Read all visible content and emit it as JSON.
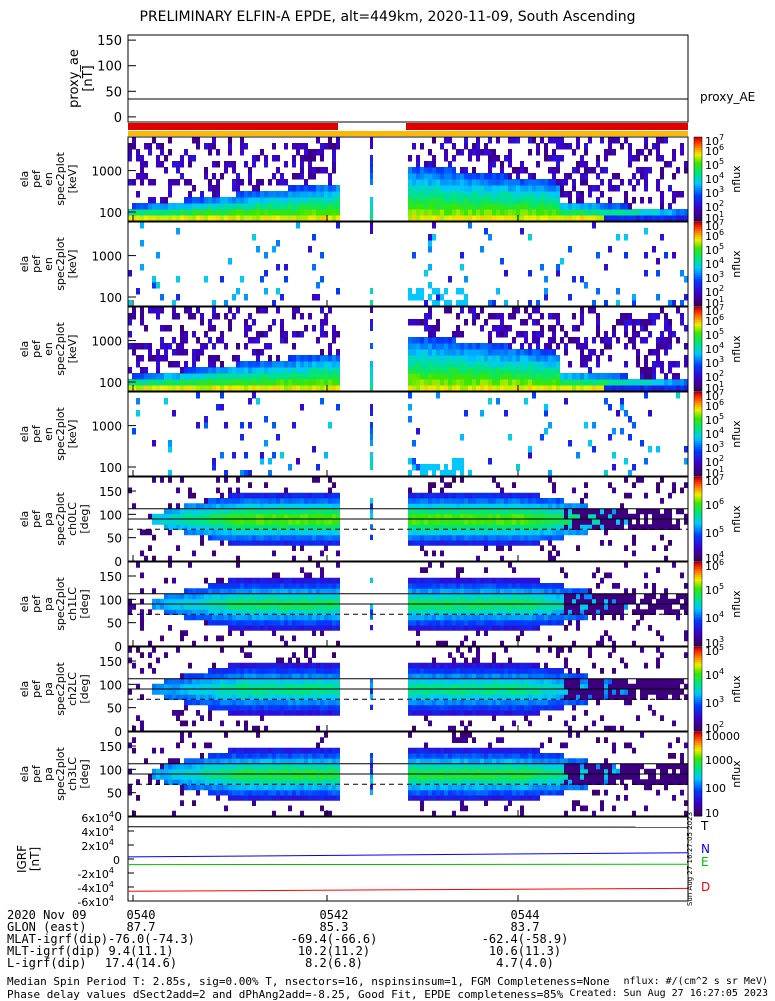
{
  "title": "PRELIMINARY ELFIN-A EPDE, alt=449km, 2020-11-09, South Ascending",
  "chart_data": [
    {
      "type": "line",
      "name": "proxy_ae",
      "ylabel": "proxy_ae\n[nT]",
      "legend": "proxy_AE",
      "ylim": [
        -10,
        160
      ],
      "yticks": [
        0,
        50,
        100,
        150
      ],
      "series": [
        {
          "name": "proxy_AE",
          "values": [
            35,
            35
          ]
        }
      ]
    },
    {
      "type": "heatmap",
      "name": "energy spectrogram",
      "ylabel": "ela\npef\nen\nspec2plot\n[keV]",
      "yscale": "log",
      "yticks": [
        "100",
        "1000"
      ],
      "colorbar": {
        "label": "nflux",
        "ticks": [
          "10^1",
          "10^2",
          "10^3",
          "10^4",
          "10^5",
          "10^6",
          "10^7"
        ]
      }
    },
    {
      "type": "heatmap",
      "name": "energy spectrogram 2",
      "ylabel": "ela\npef\nen\nspec2plot\n[keV]",
      "yscale": "log",
      "yticks": [
        "100",
        "1000"
      ],
      "colorbar": {
        "label": "nflux",
        "ticks": [
          "10^1",
          "10^2",
          "10^3",
          "10^4",
          "10^5",
          "10^6",
          "10^7"
        ]
      }
    },
    {
      "type": "heatmap",
      "name": "energy spectrogram 3",
      "ylabel": "ela\npef\nen\nspec2plot\n[keV]",
      "yscale": "log",
      "yticks": [
        "100",
        "1000"
      ],
      "colorbar": {
        "label": "nflux",
        "ticks": [
          "10^1",
          "10^2",
          "10^3",
          "10^4",
          "10^5",
          "10^6",
          "10^7"
        ]
      }
    },
    {
      "type": "heatmap",
      "name": "energy spectrogram 4",
      "ylabel": "ela\npef\nen\nspec2plot\n[keV]",
      "yscale": "log",
      "yticks": [
        "100",
        "1000"
      ],
      "colorbar": {
        "label": "nflux",
        "ticks": [
          "10^1",
          "10^2",
          "10^3",
          "10^4",
          "10^5",
          "10^6",
          "10^7"
        ]
      }
    },
    {
      "type": "heatmap",
      "name": "pitch angle ch0",
      "ylabel": "ela\npef\npa\nspec2plot\nch0LC\n[deg]",
      "ylim": [
        0,
        180
      ],
      "yticks": [
        0,
        50,
        100,
        150
      ],
      "colorbar": {
        "label": "nflux",
        "ticks": [
          "10^4",
          "10^5",
          "10^6",
          "10^7"
        ]
      }
    },
    {
      "type": "heatmap",
      "name": "pitch angle ch1",
      "ylabel": "ela\npef\npa\nspec2plot\nch1LC\n[deg]",
      "ylim": [
        0,
        180
      ],
      "yticks": [
        0,
        50,
        100,
        150
      ],
      "colorbar": {
        "label": "nflux",
        "ticks": [
          "10^3",
          "10^4",
          "10^5",
          "10^6"
        ]
      }
    },
    {
      "type": "heatmap",
      "name": "pitch angle ch2",
      "ylabel": "ela\npef\npa\nspec2plot\nch2LC\n[deg]",
      "ylim": [
        0,
        180
      ],
      "yticks": [
        0,
        50,
        100,
        150
      ],
      "colorbar": {
        "label": "nflux",
        "ticks": [
          "10^2",
          "10^3",
          "10^4",
          "10^5"
        ]
      }
    },
    {
      "type": "heatmap",
      "name": "pitch angle ch3",
      "ylabel": "ela\npef\npa\nspec2plot\nch3LC\n[deg]",
      "ylim": [
        0,
        180
      ],
      "yticks": [
        0,
        50,
        100,
        150
      ],
      "colorbar": {
        "label": "nflux",
        "ticks": [
          "10",
          "100",
          "1000",
          "10000"
        ]
      }
    },
    {
      "type": "line",
      "name": "IGRF",
      "ylabel": "IGRF\n[nT]",
      "ylim": [
        -60000,
        60000
      ],
      "yticks": [
        "-6x10^4",
        "-4x10^4",
        "-2x10^4",
        "0",
        "2x10^4",
        "4x10^4",
        "6x10^4"
      ],
      "series": [
        {
          "name": "T",
          "color": "#000000",
          "values": [
            46000,
            45500
          ]
        },
        {
          "name": "N",
          "color": "#0000ff",
          "values": [
            3000,
            9000
          ]
        },
        {
          "name": "E",
          "color": "#00c000",
          "values": [
            -8000,
            -7500
          ]
        },
        {
          "name": "D",
          "color": "#ff0000",
          "values": [
            -46000,
            -42000
          ]
        }
      ],
      "side_label": "Sun Aug 27 16:27:05 2023"
    }
  ],
  "time_axis": {
    "ticks": [
      "0540",
      "0542",
      "0544"
    ]
  },
  "ephemeris": [
    {
      "label": "2020 Nov 09",
      "values": [
        "0540",
        "0542",
        "0544"
      ]
    },
    {
      "label": "GLON (east)",
      "values": [
        "87.7",
        "85.3",
        "83.7"
      ]
    },
    {
      "label": "MLAT-igrf(dip)-76.0(-74.3)",
      "values": [
        "",
        "-69.4(-66.6)",
        "-62.4(-58.9)"
      ]
    },
    {
      "label": "MLT-igrf(dip)",
      "values": [
        "9.4(11.1)",
        "10.2(11.2)",
        "10.6(11.3)"
      ]
    },
    {
      "label": "L-igrf(dip)",
      "values": [
        "17.4(14.6)",
        "8.2(6.8)",
        "4.7(4.0)"
      ]
    }
  ],
  "footer": {
    "line1": "Median Spin Period T: 2.85s, sig=0.00% T, nsectors=16, nspinsinsum=1, FGM Completeness=None",
    "line2": "Phase delay values dSect2add=2 and dPhAng2add=-8.25, Good Fit, EPDE completeness=85%",
    "right1": "nflux: #/(cm^2 s sr MeV)",
    "right2": "Created: Sun Aug 27 16:27:05 2023"
  }
}
